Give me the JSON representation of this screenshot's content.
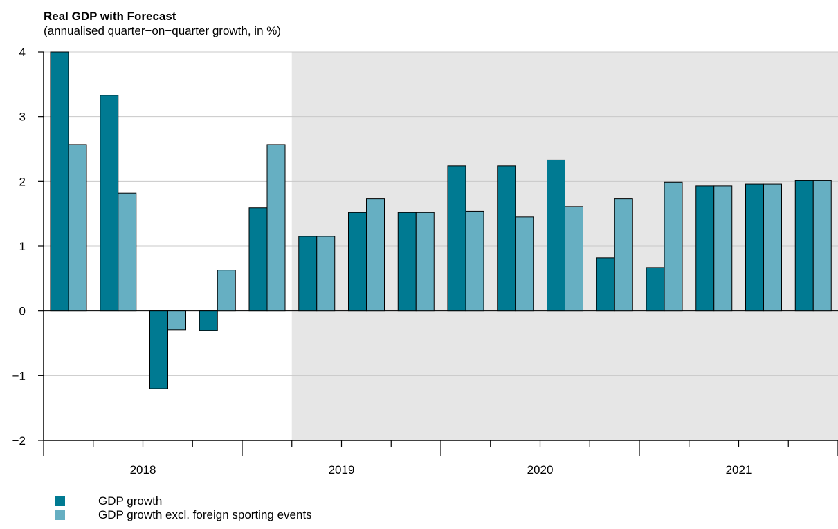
{
  "chart_data": {
    "type": "bar",
    "title": "Real GDP with Forecast",
    "subtitle": "(annualised quarter−on−quarter growth, in %)",
    "xlabel": "",
    "ylabel": "",
    "ylim": [
      -2,
      4
    ],
    "yticks": [
      "−2",
      "−1",
      "0",
      "1",
      "2",
      "3",
      "4"
    ],
    "year_labels": [
      "2018",
      "2019",
      "2020",
      "2021"
    ],
    "categories": [
      "2018Q1",
      "2018Q2",
      "2018Q3",
      "2018Q4",
      "2019Q1",
      "2019Q2",
      "2019Q3",
      "2019Q4",
      "2020Q1",
      "2020Q2",
      "2020Q3",
      "2020Q4",
      "2021Q1",
      "2021Q2",
      "2021Q3",
      "2021Q4"
    ],
    "forecast_start": "2019Q2",
    "grid": true,
    "legend_position": "bottom-left",
    "series": [
      {
        "name": "GDP growth",
        "color": "#007a92",
        "values": [
          4.0,
          3.33,
          -1.2,
          -0.3,
          1.59,
          1.15,
          1.52,
          1.52,
          2.24,
          2.24,
          2.33,
          0.82,
          0.67,
          1.93,
          1.96,
          2.01
        ]
      },
      {
        "name": "GDP growth excl. foreign sporting events",
        "color": "#66afc2",
        "values": [
          2.57,
          1.82,
          -0.29,
          0.63,
          2.57,
          1.15,
          1.73,
          1.52,
          1.54,
          1.45,
          1.61,
          1.73,
          1.99,
          1.93,
          1.96,
          2.01
        ]
      }
    ],
    "forecast_shade_color": "#e6e6e6"
  }
}
